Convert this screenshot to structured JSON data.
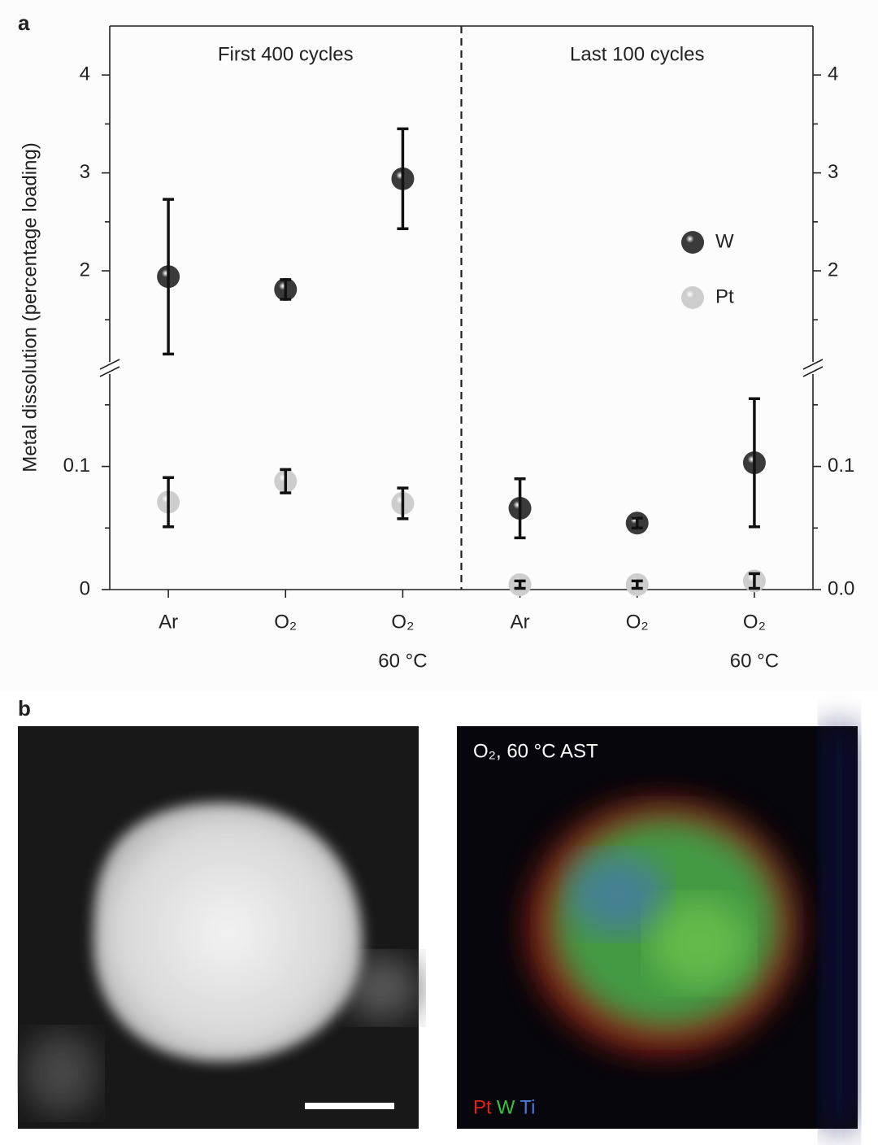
{
  "figure_labels": [
    "a",
    "b"
  ],
  "chart_data": {
    "type": "scatter",
    "y_label": "Metal dissolution (percentage loading)",
    "panels": [
      "First 400 cycles",
      "Last 100 cycles"
    ],
    "categories": [
      "Ar",
      "O₂",
      "O₂",
      "Ar",
      "O₂",
      "O₂"
    ],
    "category_notes": [
      null,
      null,
      "60 °C",
      null,
      null,
      "60 °C"
    ],
    "y_segments": [
      {
        "ylim": [
          0,
          0.175
        ],
        "yticks": [
          0,
          0.1
        ],
        "y2ticks": [
          {
            "value": 0,
            "label": "0.0"
          },
          0.1
        ],
        "minor_ticks": [
          0.05,
          0.15
        ]
      },
      {
        "ylim": [
          1.07,
          4.5
        ],
        "yticks": [
          2,
          3,
          4
        ],
        "y2ticks": [
          2,
          3,
          4
        ],
        "minor_ticks": [
          1.5,
          2.5,
          3.5
        ]
      }
    ],
    "series": [
      {
        "name": "W",
        "color": "#3a3a3a",
        "values": [
          1.94,
          1.81,
          2.94,
          0.066,
          0.054,
          0.103
        ],
        "errors": [
          0.79,
          0.1,
          0.51,
          0.024,
          0.004,
          0.052
        ]
      },
      {
        "name": "Pt",
        "color": "#cdcdcd",
        "values": [
          0.071,
          0.088,
          0.07,
          0.004,
          0.004,
          0.007
        ],
        "errors": [
          0.02,
          0.0095,
          0.0125,
          0.003,
          0.003,
          0.006
        ]
      }
    ],
    "legend": "right"
  },
  "micrographs": {
    "map_caption": "O₂, 60 °C AST",
    "map_channels": [
      {
        "name": "Pt",
        "color": "#e0231c"
      },
      {
        "name": "W",
        "color": "#34c43c"
      },
      {
        "name": "Ti",
        "color": "#4a7ad8"
      }
    ]
  }
}
